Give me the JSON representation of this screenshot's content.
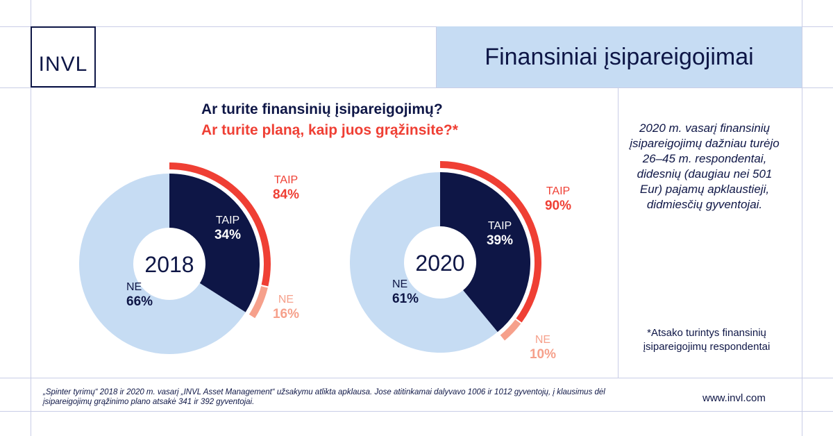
{
  "logo": {
    "text": "INVL"
  },
  "header": {
    "title": "Finansiniai įsipareigojimai"
  },
  "questions": {
    "q1": "Ar turite finansinių įsipareigojimų?",
    "q2": "Ar turite planą, kaip juos grąžinsite?*"
  },
  "colors": {
    "navy": "#0e1646",
    "light_blue": "#c6dcf3",
    "red": "#ef3f34",
    "salmon": "#f6a08b"
  },
  "chart_data": [
    {
      "type": "pie",
      "center_label": "2018",
      "inner": {
        "labels": [
          "TAIP",
          "NE"
        ],
        "values": [
          34,
          66
        ],
        "value_labels": [
          "34%",
          "66%"
        ]
      },
      "outer": {
        "labels": [
          "TAIP",
          "NE"
        ],
        "values": [
          84,
          16
        ],
        "value_labels": [
          "84%",
          "16%"
        ]
      }
    },
    {
      "type": "pie",
      "center_label": "2020",
      "inner": {
        "labels": [
          "TAIP",
          "NE"
        ],
        "values": [
          39,
          61
        ],
        "value_labels": [
          "39%",
          "61%"
        ]
      },
      "outer": {
        "labels": [
          "TAIP",
          "NE"
        ],
        "values": [
          90,
          10
        ],
        "value_labels": [
          "90%",
          "10%"
        ]
      }
    }
  ],
  "sidebar": {
    "text": "2020 m. vasarį finansinių įsipareigojimų dažniau turėjo 26–45 m. respondentai, didesnių (daugiau nei 501 Eur) pajamų apklaustieji, didmiesčių gyventojai.",
    "note": "*Atsako turintys finansinių įsipareigojimų respondentai"
  },
  "footer": {
    "source": "„Spinter tyrimų“ 2018 ir 2020 m. vasarį „INVL Asset Management“ užsakymu atlikta apklausa. Jose atitinkamai dalyvavo 1006 ir 1012 gyventojų, į klausimus dėl įsipareigojimų grąžinimo plano atsakė 341 ir 392 gyventojai.",
    "website": "www.invl.com"
  }
}
